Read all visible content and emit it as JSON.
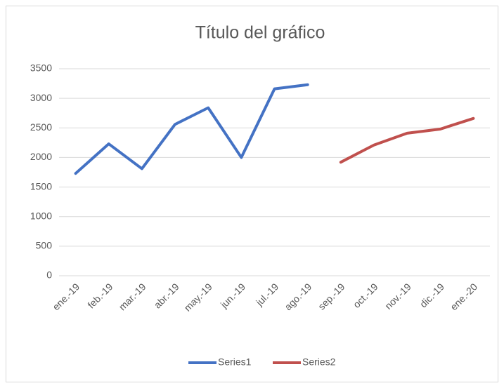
{
  "chart_data": {
    "type": "line",
    "title": "Título del gráfico",
    "categories": [
      "ene.-19",
      "feb.-19",
      "mar.-19",
      "abr.-19",
      "may.-19",
      "jun.-19",
      "jul.-19",
      "ago.-19",
      "sep.-19",
      "oct.-19",
      "nov.-19",
      "dic.-19",
      "ene.-20"
    ],
    "series": [
      {
        "name": "Series1",
        "color": "#4472c4",
        "values": [
          1730,
          2230,
          1810,
          2560,
          2840,
          2000,
          3160,
          3230,
          null,
          null,
          null,
          null,
          null
        ]
      },
      {
        "name": "Series2",
        "color": "#c0504d",
        "values": [
          null,
          null,
          null,
          null,
          null,
          null,
          null,
          null,
          1920,
          2210,
          2410,
          2480,
          2660
        ]
      }
    ],
    "ylim": [
      0,
      3500
    ],
    "yticks": [
      0,
      500,
      1000,
      1500,
      2000,
      2500,
      3000,
      3500
    ],
    "grid": true,
    "legend": "bottom"
  }
}
